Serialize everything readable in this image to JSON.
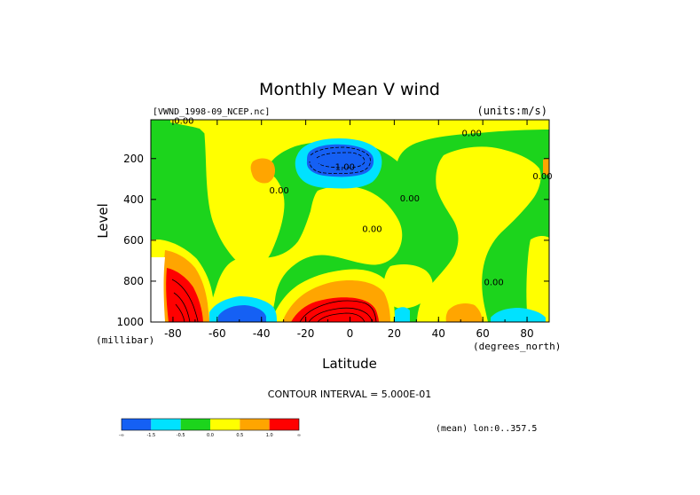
{
  "chart_data": {
    "type": "heatmap",
    "title": "Monthly Mean V wind",
    "dataset": "[VWND_1998-09_NCEP.nc]",
    "units": "(units:m/s)",
    "xlabel": "Latitude",
    "xunits": "(degrees_north)",
    "ylabel": "Level",
    "yunits": "(millibar)",
    "xlim": [
      -90,
      90
    ],
    "ylim": [
      1000,
      10
    ],
    "y_inverted": true,
    "xticks": [
      -80,
      -60,
      -40,
      -20,
      0,
      20,
      40,
      60,
      80
    ],
    "xtick_labels": [
      "-80",
      "-60",
      "-40",
      "-20",
      "0",
      "20",
      "40",
      "60",
      "80"
    ],
    "yticks": [
      200,
      400,
      600,
      800,
      1000
    ],
    "ytick_labels": [
      "200",
      "400",
      "600",
      "800",
      "1000"
    ],
    "contour_interval_text": "CONTOUR INTERVAL = 5.000E-01",
    "footer_text": "(mean) lon:0..357.5",
    "contour_labels": [
      {
        "text": "0.00",
        "x": -75,
        "y": 30
      },
      {
        "text": "0.00",
        "x": 55,
        "y": 90
      },
      {
        "text": "-1.00",
        "x": -3,
        "y": 255
      },
      {
        "text": "0.00",
        "x": -32,
        "y": 370
      },
      {
        "text": "0.00",
        "x": 10,
        "y": 560
      },
      {
        "text": "0.00",
        "x": 27,
        "y": 410
      },
      {
        "text": "0.00",
        "x": 87,
        "y": 300
      },
      {
        "text": "0.00",
        "x": 65,
        "y": 820
      }
    ],
    "levels": [
      {
        "label": "-∞",
        "color": "#1560f4"
      },
      {
        "label": "-1.5",
        "color": "#00e2ff"
      },
      {
        "label": "-0.5",
        "color": "#1cd41c"
      },
      {
        "label": "0.0",
        "color": "#ffff00"
      },
      {
        "label": "0.5",
        "color": "#ffa500"
      },
      {
        "label": "1.0",
        "color": "#ff0000"
      },
      {
        "label": "∞",
        "color": ""
      }
    ],
    "colors": {
      "blue": "#1560f4",
      "cyan": "#00e2ff",
      "green": "#1cd41c",
      "yellow": "#ffff00",
      "orange": "#ffa500",
      "red": "#ff0000"
    }
  }
}
